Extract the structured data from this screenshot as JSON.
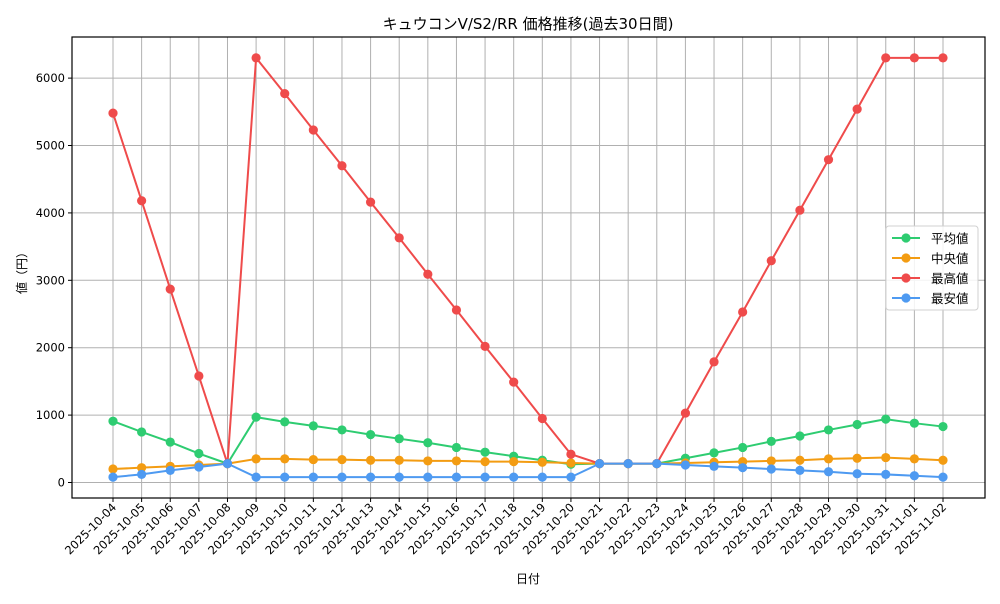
{
  "chart_data": {
    "type": "line",
    "title": "キュウコンV/S2/RR 価格推移(過去30日間)",
    "xlabel": "日付",
    "ylabel": "値（円）",
    "ylim": [
      -230,
      6610
    ],
    "yticks": [
      0,
      1000,
      2000,
      3000,
      4000,
      5000,
      6000
    ],
    "grid": true,
    "legend_position": "center right",
    "categories": [
      "2025-10-04",
      "2025-10-05",
      "2025-10-06",
      "2025-10-07",
      "2025-10-08",
      "2025-10-09",
      "2025-10-10",
      "2025-10-11",
      "2025-10-12",
      "2025-10-13",
      "2025-10-14",
      "2025-10-15",
      "2025-10-16",
      "2025-10-17",
      "2025-10-18",
      "2025-10-19",
      "2025-10-20",
      "2025-10-21",
      "2025-10-22",
      "2025-10-23",
      "2025-10-24",
      "2025-10-25",
      "2025-10-26",
      "2025-10-27",
      "2025-10-28",
      "2025-10-29",
      "2025-10-30",
      "2025-10-31",
      "2025-11-01",
      "2025-11-02"
    ],
    "series": [
      {
        "name": "平均値",
        "color": "#2ecc71",
        "values": [
          910,
          750,
          600,
          430,
          280,
          970,
          900,
          840,
          780,
          710,
          650,
          590,
          520,
          450,
          390,
          330,
          270,
          280,
          280,
          280,
          360,
          440,
          520,
          610,
          690,
          780,
          860,
          940,
          880,
          830
        ]
      },
      {
        "name": "中央値",
        "color": "#f39c12",
        "values": [
          200,
          220,
          240,
          260,
          280,
          350,
          350,
          340,
          340,
          330,
          330,
          320,
          320,
          310,
          310,
          300,
          290,
          280,
          280,
          280,
          290,
          300,
          310,
          320,
          330,
          350,
          360,
          370,
          350,
          330
        ]
      },
      {
        "name": "最高値",
        "color": "#ef4b4b",
        "values": [
          5480,
          4180,
          2870,
          1580,
          280,
          6300,
          5770,
          5230,
          4700,
          4160,
          3630,
          3090,
          2560,
          2020,
          1490,
          950,
          420,
          280,
          280,
          280,
          1030,
          1790,
          2530,
          3290,
          4040,
          4790,
          5540,
          6300,
          6300,
          6300
        ]
      },
      {
        "name": "最安値",
        "color": "#4e9af1",
        "values": [
          80,
          120,
          180,
          230,
          280,
          80,
          80,
          80,
          80,
          80,
          80,
          80,
          80,
          80,
          80,
          80,
          80,
          280,
          280,
          280,
          260,
          240,
          220,
          200,
          180,
          160,
          130,
          120,
          100,
          80
        ]
      }
    ]
  }
}
